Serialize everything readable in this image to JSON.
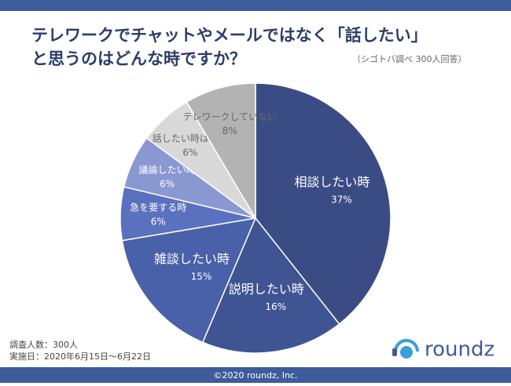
{
  "chart_data": {
    "type": "pie",
    "title": [
      "テレワークでチャットやメールではなく「話したい」",
      "と思うのはどんな時ですか？"
    ],
    "subtitle": "（シゴトバ調べ 300人回答）",
    "categories": [
      "相談したい時",
      "説明したい時",
      "雑談したい時",
      "急を要する時",
      "議論したい時",
      "話したい時はない",
      "テレワークしていない"
    ],
    "values": [
      37,
      16,
      15,
      6,
      6,
      6,
      8
    ],
    "value_labels": [
      "37%",
      "16%",
      "15%",
      "6%",
      "6%",
      "6%",
      "8%"
    ],
    "colors": [
      "#3b4c85",
      "#3f5493",
      "#4861a8",
      "#5a71bf",
      "#8a98d2",
      "#d9d9d9",
      "#b3b3b3"
    ],
    "notes": [
      "調査人数：300人",
      "実施日：2020年6月15日〜6月22日"
    ],
    "logo": "roundz",
    "footer": "©2020 roundz, Inc."
  }
}
